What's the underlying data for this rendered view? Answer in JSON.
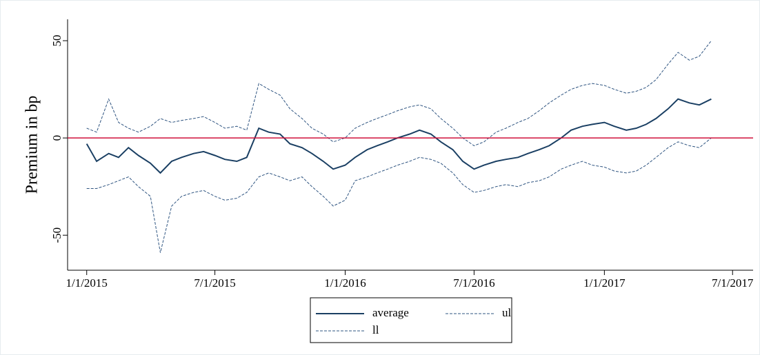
{
  "chart_data": {
    "type": "line",
    "y_label": "Premium in bp",
    "x": [
      "1/1/2015",
      "1/15/2015",
      "2/1/2015",
      "2/15/2015",
      "3/1/2015",
      "3/15/2015",
      "4/1/2015",
      "4/15/2015",
      "5/1/2015",
      "5/15/2015",
      "6/1/2015",
      "6/15/2015",
      "7/1/2015",
      "7/15/2015",
      "8/1/2015",
      "8/15/2015",
      "9/1/2015",
      "9/15/2015",
      "10/1/2015",
      "10/15/2015",
      "11/1/2015",
      "11/15/2015",
      "12/1/2015",
      "12/15/2015",
      "1/1/2016",
      "1/15/2016",
      "2/1/2016",
      "2/15/2016",
      "3/1/2016",
      "3/15/2016",
      "4/1/2016",
      "4/15/2016",
      "5/1/2016",
      "5/15/2016",
      "6/1/2016",
      "6/15/2016",
      "7/1/2016",
      "7/15/2016",
      "8/1/2016",
      "8/15/2016",
      "9/1/2016",
      "9/15/2016",
      "10/1/2016",
      "10/15/2016",
      "11/1/2016",
      "11/15/2016",
      "12/1/2016",
      "12/15/2016",
      "1/1/2017",
      "1/15/2017",
      "2/1/2017",
      "2/15/2017",
      "3/1/2017",
      "3/15/2017",
      "4/1/2017",
      "4/15/2017",
      "5/1/2017",
      "5/15/2017",
      "6/1/2017"
    ],
    "series": [
      {
        "name": "average",
        "color": "#1a3f63",
        "dash": false,
        "values": [
          -3,
          -12,
          -8,
          -10,
          -5,
          -9,
          -13,
          -18,
          -12,
          -10,
          -8,
          -7,
          -9,
          -11,
          -12,
          -10,
          5,
          3,
          2,
          -3,
          -5,
          -8,
          -12,
          -16,
          -14,
          -10,
          -6,
          -4,
          -2,
          0,
          2,
          4,
          2,
          -2,
          -6,
          -12,
          -16,
          -14,
          -12,
          -11,
          -10,
          -8,
          -6,
          -4,
          0,
          4,
          6,
          7,
          8,
          6,
          4,
          5,
          7,
          10,
          15,
          20,
          18,
          17,
          20
        ]
      },
      {
        "name": "ul",
        "color": "#2e5480",
        "dash": true,
        "values": [
          5,
          3,
          20,
          8,
          5,
          3,
          6,
          10,
          8,
          9,
          10,
          11,
          8,
          5,
          6,
          4,
          28,
          25,
          22,
          15,
          10,
          5,
          2,
          -2,
          0,
          5,
          8,
          10,
          12,
          14,
          16,
          17,
          15,
          10,
          5,
          0,
          -4,
          -2,
          3,
          5,
          8,
          10,
          14,
          18,
          22,
          25,
          27,
          28,
          27,
          25,
          23,
          24,
          26,
          30,
          38,
          44,
          40,
          42,
          50
        ]
      },
      {
        "name": "ll",
        "color": "#2e5480",
        "dash": true,
        "values": [
          -26,
          -26,
          -24,
          -22,
          -20,
          -25,
          -30,
          -59,
          -35,
          -30,
          -28,
          -27,
          -30,
          -32,
          -31,
          -28,
          -20,
          -18,
          -20,
          -22,
          -20,
          -25,
          -30,
          -35,
          -32,
          -22,
          -20,
          -18,
          -16,
          -14,
          -12,
          -10,
          -11,
          -13,
          -18,
          -24,
          -28,
          -27,
          -25,
          -24,
          -25,
          -23,
          -22,
          -20,
          -16,
          -14,
          -12,
          -14,
          -15,
          -17,
          -18,
          -17,
          -14,
          -10,
          -5,
          -2,
          -4,
          -5,
          0
        ]
      }
    ],
    "xlim": [
      "12/5/2014",
      "7/30/2017"
    ],
    "xticks": [
      "1/1/2015",
      "7/1/2015",
      "1/1/2016",
      "7/1/2016",
      "1/1/2017",
      "7/1/2017"
    ],
    "ylim": [
      -68,
      61
    ],
    "yticks": [
      -50,
      0,
      50
    ],
    "reference_line": {
      "value": 0,
      "color": "#d0103a"
    }
  }
}
